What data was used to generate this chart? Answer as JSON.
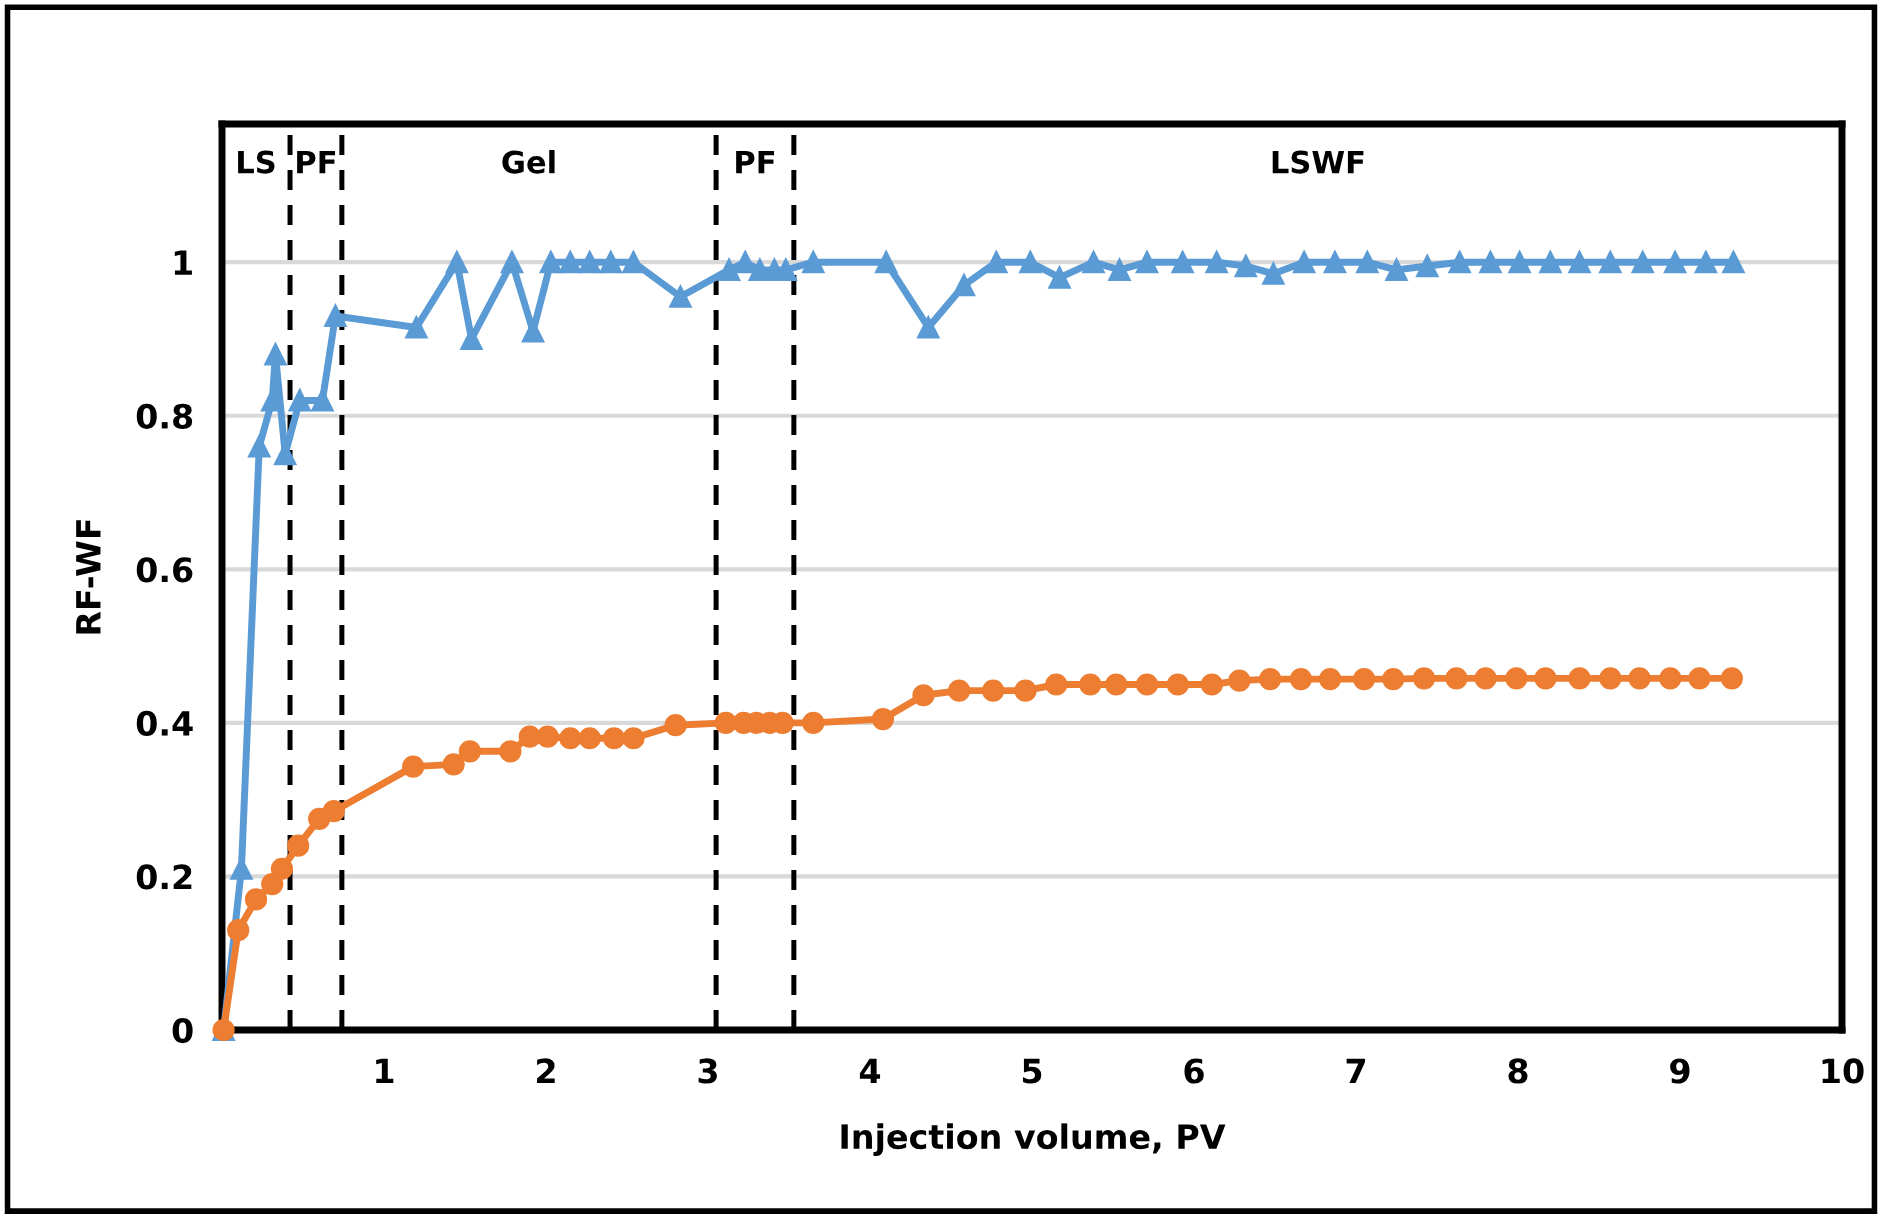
{
  "chart_data": {
    "type": "line",
    "xlabel": "Injection volume, PV",
    "ylabel": "RF-WF",
    "xlim": [
      0,
      10
    ],
    "xticks": [
      1,
      2,
      3,
      4,
      5,
      6,
      7,
      8,
      9,
      10
    ],
    "ylim": [
      0,
      1.18
    ],
    "yticks": [
      0,
      0.2,
      0.4,
      0.6,
      0.8,
      1
    ],
    "grid": "y",
    "legend": false,
    "line_style": "solid",
    "series": [
      {
        "color": "#5b9bd5",
        "marker": "triangle",
        "x": [
          0.01,
          0.12,
          0.23,
          0.31,
          0.33,
          0.39,
          0.48,
          0.62,
          0.7,
          1.2,
          1.45,
          1.54,
          1.79,
          1.92,
          2.03,
          2.15,
          2.27,
          2.4,
          2.54,
          2.83,
          3.13,
          3.23,
          3.32,
          3.41,
          3.48,
          3.65,
          4.1,
          4.36,
          4.58,
          4.78,
          4.99,
          5.17,
          5.38,
          5.54,
          5.71,
          5.93,
          6.14,
          6.32,
          6.49,
          6.68,
          6.87,
          7.07,
          7.25,
          7.44,
          7.64,
          7.83,
          8.01,
          8.2,
          8.38,
          8.57,
          8.77,
          8.97,
          9.16,
          9.33
        ],
        "values": [
          0,
          0.21,
          0.76,
          0.82,
          0.88,
          0.75,
          0.82,
          0.82,
          0.93,
          0.915,
          1.0,
          0.9,
          1.0,
          0.91,
          1.0,
          1.0,
          1.0,
          1.0,
          1.0,
          0.955,
          0.99,
          1.0,
          0.99,
          0.99,
          0.99,
          1.0,
          1.0,
          0.915,
          0.97,
          1.0,
          1.0,
          0.98,
          1.0,
          0.99,
          1.0,
          1.0,
          1.0,
          0.995,
          0.985,
          1.0,
          1.0,
          1.0,
          0.99,
          0.995,
          1.0,
          1.0,
          1.0,
          1.0,
          1.0,
          1.0,
          1.0,
          1.0,
          1.0,
          1.0
        ]
      },
      {
        "color": "#ed7d31",
        "marker": "circle",
        "x": [
          0.01,
          0.1,
          0.21,
          0.31,
          0.37,
          0.47,
          0.6,
          0.69,
          1.18,
          1.43,
          1.53,
          1.78,
          1.9,
          2.01,
          2.15,
          2.27,
          2.42,
          2.54,
          2.8,
          3.11,
          3.22,
          3.3,
          3.38,
          3.46,
          3.65,
          4.08,
          4.33,
          4.55,
          4.76,
          4.96,
          5.15,
          5.36,
          5.52,
          5.71,
          5.9,
          6.11,
          6.28,
          6.47,
          6.66,
          6.84,
          7.05,
          7.23,
          7.42,
          7.62,
          7.8,
          7.99,
          8.17,
          8.38,
          8.57,
          8.75,
          8.94,
          9.12,
          9.32
        ],
        "values": [
          0,
          0.13,
          0.17,
          0.19,
          0.21,
          0.24,
          0.275,
          0.285,
          0.343,
          0.346,
          0.363,
          0.363,
          0.382,
          0.382,
          0.38,
          0.38,
          0.38,
          0.38,
          0.397,
          0.4,
          0.4,
          0.4,
          0.4,
          0.4,
          0.4,
          0.405,
          0.436,
          0.442,
          0.442,
          0.442,
          0.45,
          0.45,
          0.45,
          0.45,
          0.45,
          0.45,
          0.455,
          0.457,
          0.457,
          0.457,
          0.457,
          0.457,
          0.458,
          0.458,
          0.458,
          0.458,
          0.458,
          0.458,
          0.458,
          0.458,
          0.458,
          0.458,
          0.458
        ]
      }
    ],
    "ref_lines": [
      {
        "axis": "x",
        "value": 0.42,
        "color": "#000000",
        "line_style": "dashed"
      },
      {
        "axis": "x",
        "value": 0.74,
        "color": "#000000",
        "line_style": "dashed"
      },
      {
        "axis": "x",
        "value": 3.05,
        "color": "#000000",
        "line_style": "dashed"
      },
      {
        "axis": "x",
        "value": 3.53,
        "color": "#000000",
        "line_style": "dashed"
      }
    ],
    "annotations": [
      "LS",
      "PF",
      "Gel",
      "PF",
      "LSWF"
    ]
  }
}
